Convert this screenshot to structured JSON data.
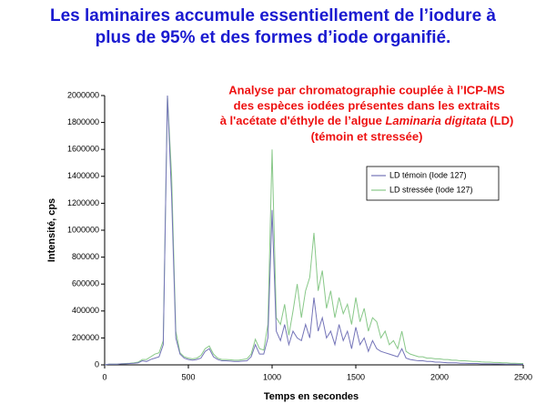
{
  "slide_title": [
    "Les laminaires accumule essentiellement de l’iodure à",
    "plus de 95% et des formes d’iode organifié."
  ],
  "chart_data": {
    "type": "line",
    "annotation": [
      "Analyse par chromatographie couplée à l’ICP-MS",
      "des espèces iodées présentes dans les extraits",
      [
        "à l'acétate d'éthyle de l’algue ",
        "Laminaria digitata",
        " (LD)"
      ],
      "(témoin et stressée)"
    ],
    "x_label": "Temps en secondes",
    "y_label": "Intensité, cps",
    "xlim": [
      0,
      2500
    ],
    "ylim": [
      0,
      2000000
    ],
    "xticks": [
      0,
      500,
      1000,
      1500,
      2000,
      2500
    ],
    "yticks": [
      0,
      200000,
      400000,
      600000,
      800000,
      1000000,
      1200000,
      1400000,
      1600000,
      1800000,
      2000000
    ],
    "x": [
      0,
      25,
      50,
      75,
      100,
      125,
      150,
      175,
      200,
      225,
      250,
      275,
      300,
      325,
      350,
      375,
      400,
      425,
      450,
      475,
      500,
      525,
      550,
      575,
      600,
      625,
      650,
      675,
      700,
      725,
      750,
      775,
      800,
      825,
      850,
      875,
      900,
      925,
      950,
      975,
      1000,
      1025,
      1050,
      1075,
      1100,
      1125,
      1150,
      1175,
      1200,
      1225,
      1250,
      1275,
      1300,
      1325,
      1350,
      1375,
      1400,
      1425,
      1450,
      1475,
      1500,
      1525,
      1550,
      1575,
      1600,
      1625,
      1650,
      1675,
      1700,
      1725,
      1750,
      1775,
      1800,
      1825,
      1850,
      1875,
      1900,
      1925,
      1950,
      1975,
      2000,
      2025,
      2050,
      2075,
      2100,
      2125,
      2150,
      2175,
      2200,
      2225,
      2250,
      2275,
      2300,
      2325,
      2350,
      2375,
      2400,
      2425,
      2450,
      2475,
      2500
    ],
    "series": [
      {
        "name": "LD témoin (Iode 127)",
        "color": "#7474b8",
        "values": [
          0,
          5000,
          5000,
          5000,
          8000,
          8000,
          10000,
          12000,
          15000,
          30000,
          25000,
          40000,
          50000,
          60000,
          150000,
          2000000,
          1250000,
          200000,
          80000,
          50000,
          40000,
          35000,
          40000,
          50000,
          100000,
          120000,
          60000,
          40000,
          30000,
          30000,
          28000,
          25000,
          25000,
          28000,
          30000,
          60000,
          150000,
          80000,
          80000,
          200000,
          1150000,
          250000,
          180000,
          300000,
          150000,
          250000,
          200000,
          180000,
          300000,
          200000,
          500000,
          250000,
          350000,
          200000,
          250000,
          150000,
          300000,
          180000,
          250000,
          120000,
          280000,
          150000,
          200000,
          100000,
          180000,
          120000,
          100000,
          90000,
          80000,
          70000,
          60000,
          120000,
          50000,
          40000,
          35000,
          30000,
          30000,
          25000,
          25000,
          20000,
          20000,
          18000,
          15000,
          15000,
          15000,
          12000,
          12000,
          10000,
          10000,
          10000,
          8000,
          8000,
          8000,
          7000,
          7000,
          6000,
          5000,
          5000,
          5000,
          4000,
          4000
        ]
      },
      {
        "name": "LD stressée (Iode 127)",
        "color": "#88c888",
        "values": [
          0,
          5000,
          5000,
          5000,
          8000,
          10000,
          12000,
          15000,
          20000,
          40000,
          40000,
          60000,
          80000,
          90000,
          180000,
          2000000,
          1400000,
          250000,
          90000,
          60000,
          50000,
          45000,
          50000,
          70000,
          120000,
          140000,
          80000,
          50000,
          40000,
          40000,
          38000,
          35000,
          35000,
          40000,
          45000,
          80000,
          190000,
          120000,
          110000,
          300000,
          1600000,
          350000,
          300000,
          450000,
          220000,
          400000,
          600000,
          350000,
          550000,
          650000,
          980000,
          550000,
          700000,
          420000,
          550000,
          350000,
          500000,
          380000,
          450000,
          300000,
          500000,
          320000,
          420000,
          250000,
          350000,
          320000,
          200000,
          250000,
          150000,
          180000,
          120000,
          250000,
          100000,
          80000,
          70000,
          60000,
          60000,
          50000,
          50000,
          45000,
          45000,
          40000,
          40000,
          35000,
          35000,
          30000,
          30000,
          28000,
          25000,
          25000,
          22000,
          20000,
          20000,
          18000,
          18000,
          15000,
          15000,
          12000,
          12000,
          10000,
          10000
        ]
      }
    ]
  }
}
